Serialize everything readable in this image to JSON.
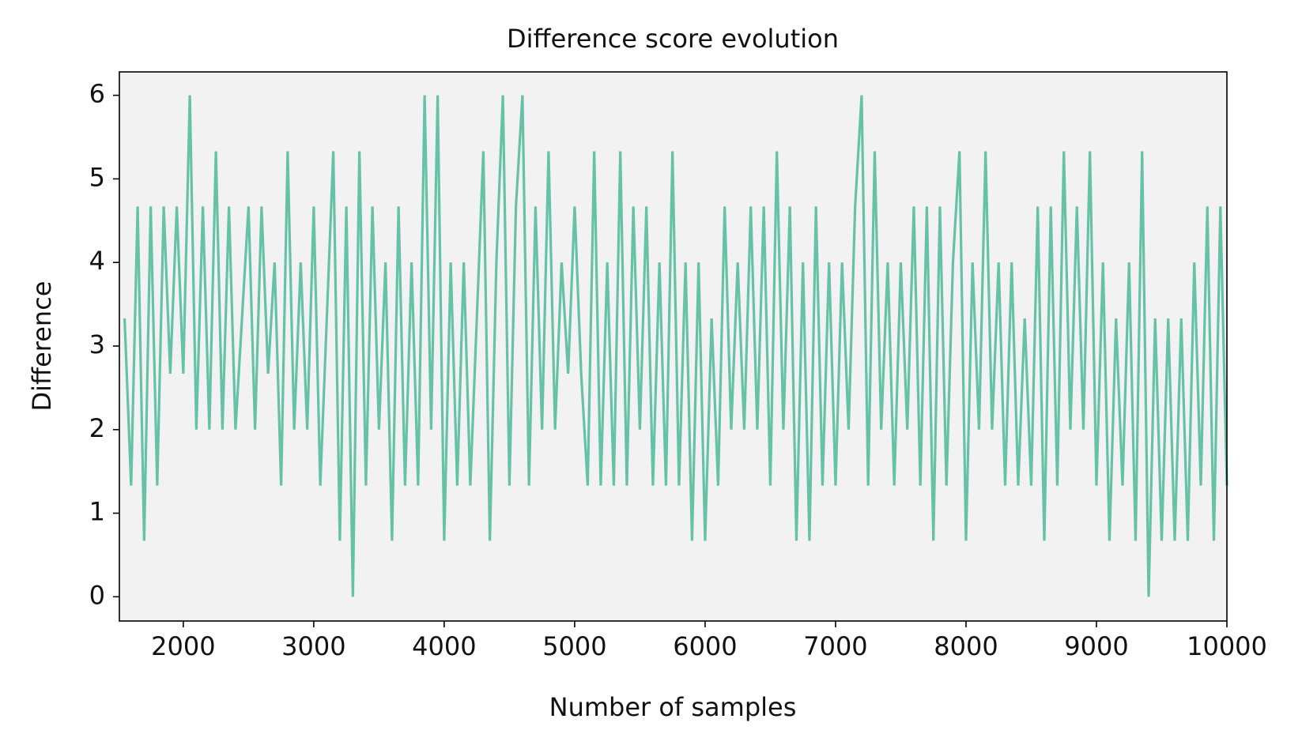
{
  "chart_data": {
    "type": "line",
    "title": "Difference score evolution",
    "xlabel": "Number of samples",
    "ylabel": "Difference",
    "xlim": [
      1510,
      10000
    ],
    "ylim": [
      -0.29,
      6.28
    ],
    "xticks": [
      2000,
      3000,
      4000,
      5000,
      6000,
      7000,
      8000,
      9000,
      10000
    ],
    "yticks": [
      0,
      1,
      2,
      3,
      4,
      5,
      6
    ],
    "background": "#f2f2f2",
    "x": [
      1550,
      1600,
      1650,
      1700,
      1750,
      1800,
      1850,
      1900,
      1950,
      2000,
      2050,
      2100,
      2150,
      2200,
      2250,
      2300,
      2350,
      2400,
      2450,
      2500,
      2550,
      2600,
      2650,
      2700,
      2750,
      2800,
      2850,
      2900,
      2950,
      3000,
      3050,
      3100,
      3150,
      3200,
      3250,
      3300,
      3350,
      3400,
      3450,
      3500,
      3550,
      3600,
      3650,
      3700,
      3750,
      3800,
      3850,
      3900,
      3950,
      4000,
      4050,
      4100,
      4150,
      4200,
      4250,
      4300,
      4350,
      4400,
      4450,
      4500,
      4550,
      4600,
      4650,
      4700,
      4750,
      4800,
      4850,
      4900,
      4950,
      5000,
      5050,
      5100,
      5150,
      5200,
      5250,
      5300,
      5350,
      5400,
      5450,
      5500,
      5550,
      5600,
      5650,
      5700,
      5750,
      5800,
      5850,
      5900,
      5950,
      6000,
      6050,
      6100,
      6150,
      6200,
      6250,
      6300,
      6350,
      6400,
      6450,
      6500,
      6550,
      6600,
      6650,
      6700,
      6750,
      6800,
      6850,
      6900,
      6950,
      7000,
      7050,
      7100,
      7150,
      7200,
      7250,
      7300,
      7350,
      7400,
      7450,
      7500,
      7550,
      7600,
      7650,
      7700,
      7750,
      7800,
      7850,
      7900,
      7950,
      8000,
      8050,
      8100,
      8150,
      8200,
      8250,
      8300,
      8350,
      8400,
      8450,
      8500,
      8550,
      8600,
      8650,
      8700,
      8750,
      8800,
      8850,
      8900,
      8950,
      9000,
      9050,
      9100,
      9150,
      9200,
      9250,
      9300,
      9350,
      9400,
      9450,
      9500,
      9550,
      9600,
      9650,
      9700,
      9750,
      9800,
      9850,
      9900,
      9950,
      10000
    ],
    "series": [
      {
        "name": "Difference",
        "color": "#66c2a5",
        "values": [
          3.33,
          1.33,
          4.67,
          0.67,
          4.67,
          1.33,
          4.67,
          2.67,
          4.67,
          2.67,
          6,
          2,
          4.67,
          2,
          5.33,
          2,
          4.67,
          2,
          3.33,
          4.67,
          2,
          4.67,
          2.67,
          4,
          1.33,
          5.33,
          2,
          4,
          2,
          4.67,
          1.33,
          3.33,
          5.33,
          0.67,
          4.67,
          0,
          5.33,
          1.33,
          4.67,
          2,
          4,
          0.67,
          4.67,
          1.33,
          4,
          1.33,
          6,
          2,
          6,
          0.67,
          4,
          1.33,
          4,
          1.33,
          3.33,
          5.33,
          0.67,
          4,
          6,
          1.33,
          4.67,
          6,
          1.33,
          4.67,
          2,
          5.33,
          2,
          4,
          2.67,
          4.67,
          2.67,
          1.33,
          5.33,
          1.33,
          4,
          1.33,
          5.33,
          1.33,
          4.67,
          2,
          4.67,
          1.33,
          4,
          1.33,
          5.33,
          1.33,
          4,
          0.67,
          4,
          0.67,
          3.33,
          1.33,
          4.67,
          2,
          4,
          2,
          4.67,
          2,
          4.67,
          1.33,
          5.33,
          2,
          4.67,
          0.67,
          4,
          0.67,
          4.67,
          1.33,
          4,
          1.33,
          4,
          2,
          4.67,
          6,
          1.33,
          5.33,
          2,
          4,
          1.33,
          4,
          2,
          4.67,
          1.33,
          4.67,
          0.67,
          4.67,
          1.33,
          4,
          5.33,
          0.67,
          4,
          2,
          5.33,
          2,
          4,
          1.33,
          4,
          1.33,
          3.33,
          1.33,
          4.67,
          0.67,
          4.67,
          1.33,
          5.33,
          2,
          4.67,
          2,
          5.33,
          1.33,
          4,
          0.67,
          3.33,
          1.33,
          4,
          0.67,
          5.33,
          0,
          3.33,
          0.67,
          3.33,
          0.67,
          3.33,
          0.67,
          4,
          1.33,
          4.67,
          0.67,
          4.67,
          1.33
        ]
      }
    ]
  }
}
